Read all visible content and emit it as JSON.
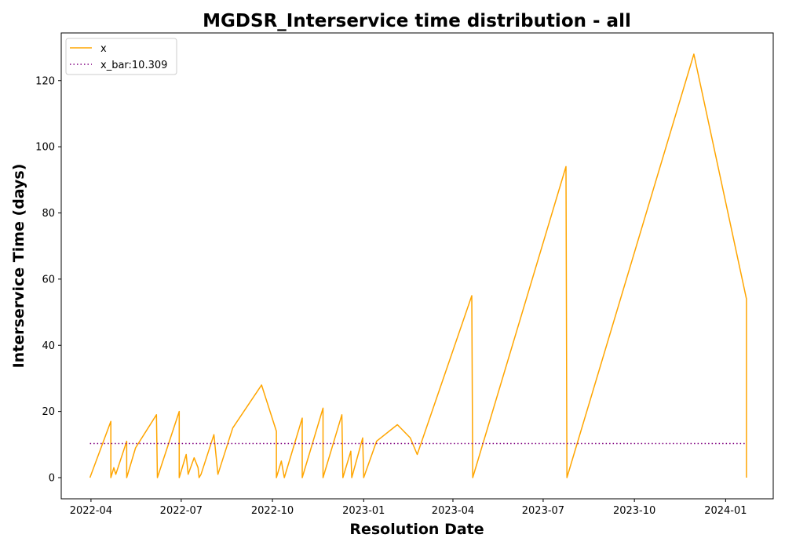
{
  "chart_data": {
    "type": "line",
    "title": "MGDSR_Interservice time distribution - all",
    "xlabel": "Resolution Date",
    "ylabel": "Interservice Time (days)",
    "xlim": [
      "2022-03-02",
      "2024-02-18"
    ],
    "ylim": [
      -6.4,
      134.4
    ],
    "x_ticks": [
      "2022-04",
      "2022-07",
      "2022-10",
      "2023-01",
      "2023-04",
      "2023-07",
      "2023-10",
      "2024-01"
    ],
    "y_ticks": [
      0,
      20,
      40,
      60,
      80,
      100,
      120
    ],
    "grid": false,
    "legend_position": "top-left",
    "series": [
      {
        "name": "x",
        "color": "#ffa500",
        "style": "solid",
        "points": [
          [
            "2022-03-31",
            0
          ],
          [
            "2022-04-21",
            17
          ],
          [
            "2022-04-21",
            0
          ],
          [
            "2022-04-24",
            3
          ],
          [
            "2022-04-26",
            1
          ],
          [
            "2022-05-07",
            11
          ],
          [
            "2022-05-07",
            0
          ],
          [
            "2022-05-16",
            9
          ],
          [
            "2022-06-06",
            19
          ],
          [
            "2022-06-07",
            0
          ],
          [
            "2022-06-29",
            20
          ],
          [
            "2022-06-29",
            0
          ],
          [
            "2022-07-06",
            7
          ],
          [
            "2022-07-08",
            1
          ],
          [
            "2022-07-14",
            6
          ],
          [
            "2022-07-18",
            3
          ],
          [
            "2022-07-19",
            0
          ],
          [
            "2022-07-21",
            1
          ],
          [
            "2022-08-03",
            13
          ],
          [
            "2022-08-07",
            1
          ],
          [
            "2022-08-22",
            15
          ],
          [
            "2022-09-20",
            28
          ],
          [
            "2022-10-05",
            14
          ],
          [
            "2022-10-05",
            0
          ],
          [
            "2022-10-10",
            5
          ],
          [
            "2022-10-13",
            0
          ],
          [
            "2022-10-31",
            18
          ],
          [
            "2022-10-31",
            0
          ],
          [
            "2022-11-21",
            21
          ],
          [
            "2022-11-21",
            0
          ],
          [
            "2022-12-10",
            19
          ],
          [
            "2022-12-11",
            0
          ],
          [
            "2022-12-19",
            8
          ],
          [
            "2022-12-20",
            0
          ],
          [
            "2022-12-31",
            12
          ],
          [
            "2023-01-01",
            0
          ],
          [
            "2023-01-14",
            11
          ],
          [
            "2023-02-04",
            16
          ],
          [
            "2023-02-17",
            12
          ],
          [
            "2023-02-24",
            7
          ],
          [
            "2023-04-20",
            55
          ],
          [
            "2023-04-21",
            0
          ],
          [
            "2023-07-24",
            94
          ],
          [
            "2023-07-25",
            0
          ],
          [
            "2023-11-30",
            128
          ],
          [
            "2024-01-22",
            54
          ],
          [
            "2024-01-22",
            0
          ]
        ]
      },
      {
        "name": "x_bar:10.309",
        "color": "#800080",
        "style": "dotted",
        "points": [
          [
            "2022-03-31",
            10.309
          ],
          [
            "2024-01-22",
            10.309
          ]
        ]
      }
    ]
  }
}
